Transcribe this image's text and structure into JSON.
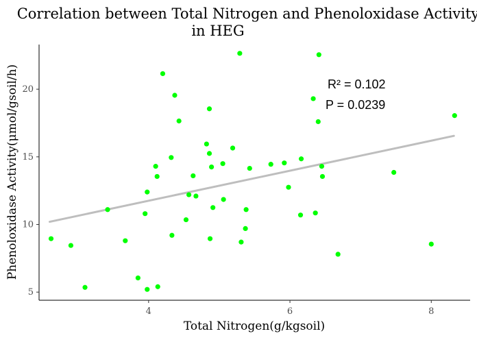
{
  "chart_data": {
    "type": "scatter",
    "title_lines": [
      "Correlation between Total Nitrogen and Phenoloxidase Activity",
      "in HEG"
    ],
    "xlabel": "Total Nitrogen(g/kgsoil)",
    "ylabel": "Phenoloxidase Activity(μmol/gsoil/h)",
    "xlim": [
      2.45,
      8.55
    ],
    "ylim": [
      4.4,
      23.3
    ],
    "xticks": [
      4,
      6,
      8
    ],
    "yticks": [
      5,
      10,
      15,
      20
    ],
    "grid": false,
    "point_color": "#00ff00",
    "line_color": "#bebebe",
    "annotations": [
      "R² = 0.102",
      "P = 0.0239"
    ],
    "regression": {
      "x": [
        2.6,
        8.32
      ],
      "y": [
        10.2,
        16.55
      ]
    },
    "points": [
      {
        "x": 2.62,
        "y": 8.95
      },
      {
        "x": 2.9,
        "y": 8.45
      },
      {
        "x": 3.1,
        "y": 5.35
      },
      {
        "x": 3.42,
        "y": 11.1
      },
      {
        "x": 3.67,
        "y": 8.8
      },
      {
        "x": 3.85,
        "y": 6.05
      },
      {
        "x": 3.95,
        "y": 10.8
      },
      {
        "x": 3.98,
        "y": 12.4
      },
      {
        "x": 3.98,
        "y": 5.2
      },
      {
        "x": 4.1,
        "y": 14.3
      },
      {
        "x": 4.12,
        "y": 13.55
      },
      {
        "x": 4.13,
        "y": 5.4
      },
      {
        "x": 4.2,
        "y": 21.15
      },
      {
        "x": 4.32,
        "y": 14.95
      },
      {
        "x": 4.33,
        "y": 9.2
      },
      {
        "x": 4.37,
        "y": 19.55
      },
      {
        "x": 4.43,
        "y": 17.65
      },
      {
        "x": 4.53,
        "y": 10.35
      },
      {
        "x": 4.57,
        "y": 12.2
      },
      {
        "x": 4.63,
        "y": 13.6
      },
      {
        "x": 4.67,
        "y": 12.1
      },
      {
        "x": 4.82,
        "y": 15.95
      },
      {
        "x": 4.86,
        "y": 18.55
      },
      {
        "x": 4.86,
        "y": 15.25
      },
      {
        "x": 4.87,
        "y": 8.95
      },
      {
        "x": 4.89,
        "y": 14.25
      },
      {
        "x": 4.91,
        "y": 11.25
      },
      {
        "x": 5.05,
        "y": 14.5
      },
      {
        "x": 5.06,
        "y": 11.85
      },
      {
        "x": 5.19,
        "y": 15.65
      },
      {
        "x": 5.29,
        "y": 22.65
      },
      {
        "x": 5.31,
        "y": 8.7
      },
      {
        "x": 5.37,
        "y": 9.7
      },
      {
        "x": 5.38,
        "y": 11.1
      },
      {
        "x": 5.43,
        "y": 14.15
      },
      {
        "x": 5.73,
        "y": 14.45
      },
      {
        "x": 5.92,
        "y": 14.55
      },
      {
        "x": 5.98,
        "y": 12.75
      },
      {
        "x": 6.15,
        "y": 10.7
      },
      {
        "x": 6.16,
        "y": 14.85
      },
      {
        "x": 6.33,
        "y": 19.3
      },
      {
        "x": 6.36,
        "y": 10.85
      },
      {
        "x": 6.4,
        "y": 17.6
      },
      {
        "x": 6.41,
        "y": 22.55
      },
      {
        "x": 6.45,
        "y": 14.3
      },
      {
        "x": 6.46,
        "y": 13.55
      },
      {
        "x": 6.68,
        "y": 7.8
      },
      {
        "x": 7.47,
        "y": 13.85
      },
      {
        "x": 8.0,
        "y": 8.55
      },
      {
        "x": 8.33,
        "y": 18.05
      }
    ]
  }
}
